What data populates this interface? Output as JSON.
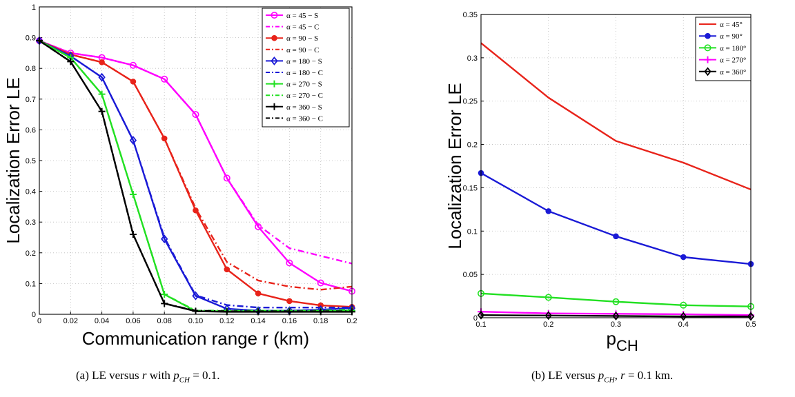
{
  "captions": {
    "a": "(a) LE versus r with p_CH = 0.1.",
    "b": "(b) LE versus p_CH, r = 0.1 km."
  },
  "chart_data": [
    {
      "type": "line",
      "xlabel": "Communication range r (km)",
      "ylabel": "Localization Error LE",
      "xlim": [
        0,
        0.2
      ],
      "ylim": [
        0,
        1
      ],
      "xticks": [
        "0",
        "0.02",
        "0.04",
        "0.06",
        "0.08",
        "0.10",
        "0.12",
        "0.14",
        "0.16",
        "0.18",
        "0.2"
      ],
      "yticks": [
        "0",
        "0.1",
        "0.2",
        "0.3",
        "0.4",
        "0.5",
        "0.6",
        "0.7",
        "0.8",
        "0.9",
        "1"
      ],
      "grid": true,
      "legend_position": "top-right",
      "x": [
        0,
        0.02,
        0.04,
        0.06,
        0.08,
        0.1,
        0.12,
        0.14,
        0.16,
        0.18,
        0.2
      ],
      "series": [
        {
          "name": "α = 45 − S",
          "color": "#ff00ff",
          "style": "solid",
          "marker": "circle",
          "values": [
            0.89,
            0.85,
            0.835,
            0.81,
            0.765,
            0.65,
            0.443,
            0.285,
            0.167,
            0.102,
            0.075
          ]
        },
        {
          "name": "α = 45 − C",
          "color": "#ff00ff",
          "style": "dashdot",
          "marker": "none",
          "values": [
            0.89,
            0.85,
            0.835,
            0.81,
            0.765,
            0.65,
            0.443,
            0.29,
            0.215,
            0.19,
            0.165
          ]
        },
        {
          "name": "α = 90 − S",
          "color": "#e8231a",
          "style": "solid",
          "marker": "dot",
          "values": [
            0.89,
            0.845,
            0.82,
            0.757,
            0.572,
            0.338,
            0.146,
            0.068,
            0.043,
            0.029,
            0.024
          ]
        },
        {
          "name": "α = 90 − C",
          "color": "#e8231a",
          "style": "dashdot",
          "marker": "none",
          "values": [
            0.89,
            0.845,
            0.82,
            0.757,
            0.572,
            0.345,
            0.17,
            0.11,
            0.09,
            0.08,
            0.09
          ]
        },
        {
          "name": "α = 180 − S",
          "color": "#1a1ad6",
          "style": "solid",
          "marker": "diamond",
          "values": [
            0.89,
            0.84,
            0.771,
            0.566,
            0.245,
            0.06,
            0.018,
            0.012,
            0.012,
            0.015,
            0.02
          ]
        },
        {
          "name": "α = 180 − C",
          "color": "#1a1ad6",
          "style": "dashdot",
          "marker": "none",
          "values": [
            0.89,
            0.84,
            0.771,
            0.566,
            0.25,
            0.062,
            0.03,
            0.022,
            0.022,
            0.022,
            0.022
          ]
        },
        {
          "name": "α = 270 − S",
          "color": "#22e022",
          "style": "solid",
          "marker": "plus",
          "values": [
            0.89,
            0.835,
            0.716,
            0.39,
            0.065,
            0.01,
            0.01,
            0.01,
            0.01,
            0.01,
            0.012
          ]
        },
        {
          "name": "α = 270 − C",
          "color": "#22e022",
          "style": "dashdot",
          "marker": "none",
          "values": [
            0.89,
            0.835,
            0.716,
            0.39,
            0.065,
            0.012,
            0.012,
            0.012,
            0.012,
            0.012,
            0.015
          ]
        },
        {
          "name": "α = 360 − S",
          "color": "#000000",
          "style": "solid",
          "marker": "plus",
          "values": [
            0.89,
            0.822,
            0.66,
            0.26,
            0.035,
            0.01,
            0.008,
            0.008,
            0.008,
            0.008,
            0.008
          ]
        },
        {
          "name": "α = 360 − C",
          "color": "#000000",
          "style": "dashdot",
          "marker": "none",
          "values": [
            0.89,
            0.822,
            0.66,
            0.26,
            0.035,
            0.012,
            0.01,
            0.01,
            0.01,
            0.01,
            0.01
          ]
        }
      ]
    },
    {
      "type": "line",
      "xlabel": "p_CH",
      "ylabel": "Localization Error LE",
      "xlim": [
        0.1,
        0.5
      ],
      "ylim": [
        0,
        0.35
      ],
      "xticks": [
        "0.1",
        "0.2",
        "0.3",
        "0.4",
        "0.5"
      ],
      "yticks": [
        "0",
        "0.05",
        "0.1",
        "0.15",
        "0.2",
        "0.25",
        "0.3",
        "0.35"
      ],
      "grid": true,
      "legend_position": "top-right",
      "x": [
        0.1,
        0.2,
        0.3,
        0.4,
        0.5
      ],
      "series": [
        {
          "name": "α = 45°",
          "color": "#e8231a",
          "style": "solid",
          "marker": "none",
          "values": [
            0.317,
            0.254,
            0.204,
            0.179,
            0.148
          ]
        },
        {
          "name": "α = 90°",
          "color": "#1a1ad6",
          "style": "solid",
          "marker": "dot",
          "values": [
            0.167,
            0.123,
            0.094,
            0.07,
            0.062
          ]
        },
        {
          "name": "α = 180°",
          "color": "#22e022",
          "style": "solid",
          "marker": "circle",
          "values": [
            0.028,
            0.0235,
            0.0185,
            0.0145,
            0.013
          ]
        },
        {
          "name": "α = 270°",
          "color": "#ff00ff",
          "style": "solid",
          "marker": "plus",
          "values": [
            0.007,
            0.005,
            0.0045,
            0.004,
            0.003
          ]
        },
        {
          "name": "α = 360°",
          "color": "#000000",
          "style": "solid",
          "marker": "diamond",
          "values": [
            0.003,
            0.0025,
            0.002,
            0.0015,
            0.0015
          ]
        }
      ]
    }
  ]
}
